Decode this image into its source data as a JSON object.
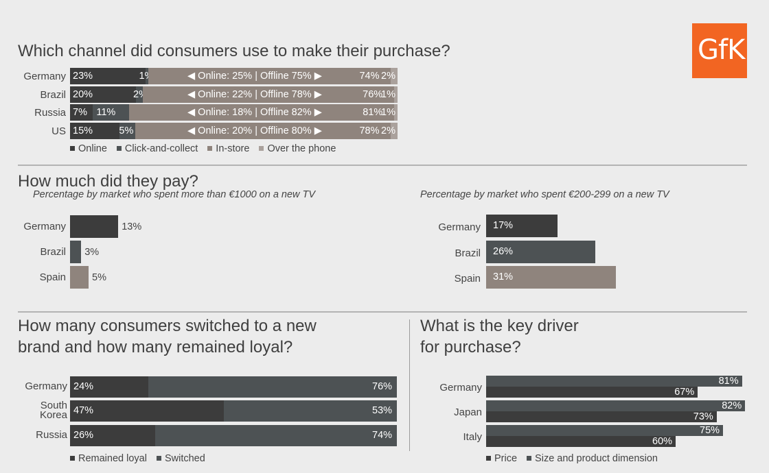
{
  "logo": {
    "text": "GfK",
    "color": "#f26522"
  },
  "colors": {
    "dark": "#3c3c3c",
    "slate": "#4d5254",
    "taupe": "#8f847d",
    "light": "#aaa19c"
  },
  "chart_data": [
    {
      "id": "channel",
      "type": "bar",
      "orientation": "horizontal-stacked",
      "title": "Which channel did consumers use to make their purchase?",
      "categories": [
        "Germany",
        "Brazil",
        "Russia",
        "US"
      ],
      "series": [
        {
          "name": "Online",
          "values": [
            23,
            20,
            7,
            15
          ],
          "labels": [
            "23%",
            "20%",
            "7%",
            "15%"
          ]
        },
        {
          "name": "Click-and-collect",
          "values": [
            1,
            2,
            11,
            5
          ],
          "labels": [
            "1%",
            "2%",
            "11%",
            "5%"
          ]
        },
        {
          "name": "In-store",
          "values": [
            74,
            76,
            81,
            78
          ],
          "labels": [
            "74%",
            "76%",
            "81%",
            "78%"
          ]
        },
        {
          "name": "Over the phone",
          "values": [
            2,
            1,
            1,
            2
          ],
          "labels": [
            "2%",
            "1%",
            "1%",
            "2%"
          ]
        }
      ],
      "annotations": [
        "◀ Online: 25% | Offline 75% ▶",
        "◀ Online: 22% | Offline 78% ▶",
        "◀ Online: 18% | Offline 82% ▶",
        "◀ Online: 20% | Offline 80% ▶"
      ],
      "xlim": [
        0,
        100
      ],
      "legend": "bottom",
      "grid": false
    },
    {
      "id": "pay_high",
      "type": "bar",
      "orientation": "horizontal",
      "title": "How much did they pay?",
      "subtitle": "Percentage by market who spent more than €1000 on a new TV",
      "categories": [
        "Germany",
        "Brazil",
        "Spain"
      ],
      "values": [
        13,
        3,
        5
      ],
      "labels": [
        "13%",
        "3%",
        "5%"
      ],
      "label_position": "outside",
      "xlim": [
        0,
        100
      ],
      "grid": false
    },
    {
      "id": "pay_mid",
      "type": "bar",
      "orientation": "horizontal",
      "title": "",
      "subtitle": "Percentage by market who spent €200-299 on a new TV",
      "categories": [
        "Germany",
        "Brazil",
        "Spain"
      ],
      "values": [
        17,
        26,
        31
      ],
      "labels": [
        "17%",
        "26%",
        "31%"
      ],
      "label_position": "inside",
      "xlim": [
        0,
        100
      ],
      "grid": false
    },
    {
      "id": "loyalty",
      "type": "bar",
      "orientation": "horizontal-stacked",
      "title": "How many consumers switched to a new brand and how many remained loyal?",
      "title_lines": [
        "How many consumers switched to a new",
        "brand and how many remained loyal?"
      ],
      "categories": [
        "Germany",
        "South Korea",
        "Russia"
      ],
      "category_lines": [
        [
          "Germany"
        ],
        [
          "South",
          "Korea"
        ],
        [
          "Russia"
        ]
      ],
      "series": [
        {
          "name": "Remained loyal",
          "values": [
            24,
            47,
            26
          ],
          "labels": [
            "24%",
            "47%",
            "26%"
          ]
        },
        {
          "name": "Switched",
          "values": [
            76,
            53,
            74
          ],
          "labels": [
            "76%",
            "53%",
            "74%"
          ]
        }
      ],
      "xlim": [
        0,
        100
      ],
      "legend": "bottom",
      "grid": false
    },
    {
      "id": "driver",
      "type": "bar",
      "orientation": "horizontal-grouped",
      "title": "What is the key driver for purchase?",
      "title_lines": [
        "What is the key driver",
        "for purchase?"
      ],
      "categories": [
        "Germany",
        "Japan",
        "Italy"
      ],
      "series": [
        {
          "name": "Price",
          "values": [
            67,
            73,
            60
          ],
          "labels": [
            "67%",
            "73%",
            "60%"
          ]
        },
        {
          "name": "Size and product dimension",
          "values": [
            81,
            82,
            75
          ],
          "labels": [
            "81%",
            "82%",
            "75%"
          ]
        }
      ],
      "xlim": [
        0,
        100
      ],
      "legend": "bottom",
      "grid": false
    }
  ]
}
